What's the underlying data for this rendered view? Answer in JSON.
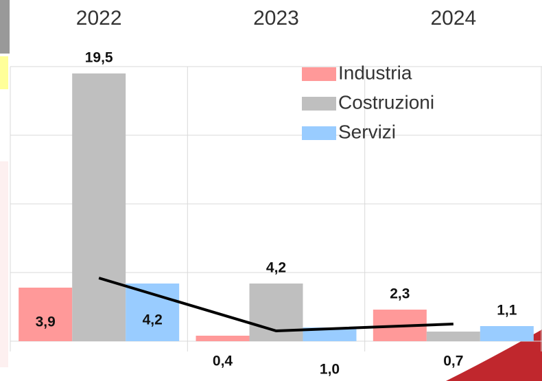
{
  "chart_data": {
    "type": "bar",
    "categories": [
      "2022",
      "2023",
      "2024"
    ],
    "series": [
      {
        "name": "Industria",
        "color": "#ff9999",
        "values": [
          3.9,
          0.4,
          2.3
        ],
        "value_labels": [
          "3,9",
          "0,4",
          "2,3"
        ]
      },
      {
        "name": "Costruzioni",
        "color": "#bfbfbf",
        "values": [
          19.5,
          4.2,
          0.7
        ],
        "value_labels": [
          "19,5",
          "4,2",
          "0,7"
        ]
      },
      {
        "name": "Servizi",
        "color": "#99ccff",
        "values": [
          4.2,
          1.0,
          1.1
        ],
        "value_labels": [
          "4,2",
          "1,0",
          "1,1"
        ]
      }
    ],
    "line": {
      "color": "#000000",
      "values": [
        4.6,
        0.75,
        1.25
      ]
    },
    "ylim": [
      0,
      20
    ],
    "yticks": [
      0,
      5,
      10,
      15,
      20
    ],
    "grid": true,
    "legend": "top-right"
  }
}
